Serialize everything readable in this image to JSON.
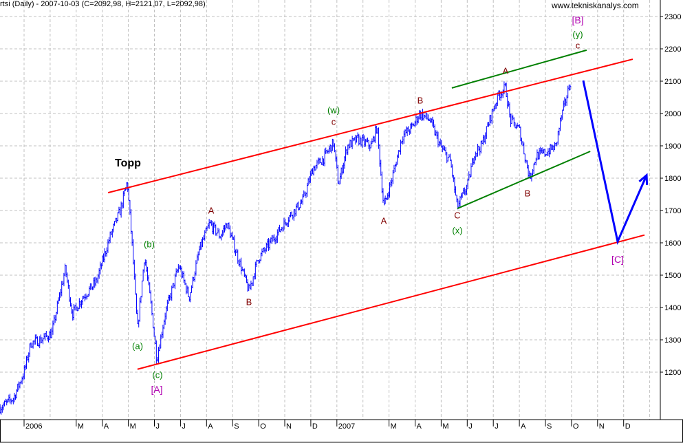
{
  "header": {
    "title": "rtsi (Daily) - 2007-10-03 (C=2092,98, H=2121,07, L=2092,98)",
    "watermark": "www.tekniskanalys.com"
  },
  "colors": {
    "price": "#0000ff",
    "channel": "#ff0000",
    "inner_channel": "#008000",
    "forecast": "#0000ff",
    "grid": "#c0c0c0"
  },
  "chart_data": {
    "type": "line",
    "title": "rtsi (Daily) - 2007-10-03 (C=2092,98, H=2121,07, L=2092,98)",
    "xlabel": "",
    "ylabel": "",
    "x_unit": "months since Jan 2006",
    "ylim": [
      1050,
      2340
    ],
    "yticks": [
      1200,
      1300,
      1400,
      1500,
      1600,
      1700,
      1800,
      1900,
      2000,
      2100,
      2200,
      2300
    ],
    "xticks": [
      {
        "m": 0,
        "label": "2006"
      },
      {
        "m": 2,
        "label": "M"
      },
      {
        "m": 3,
        "label": "A"
      },
      {
        "m": 4,
        "label": "M"
      },
      {
        "m": 5,
        "label": "J"
      },
      {
        "m": 6,
        "label": "J"
      },
      {
        "m": 7,
        "label": "A"
      },
      {
        "m": 8,
        "label": "S"
      },
      {
        "m": 9,
        "label": "O"
      },
      {
        "m": 10,
        "label": "N"
      },
      {
        "m": 11,
        "label": "D"
      },
      {
        "m": 12,
        "label": "2007"
      },
      {
        "m": 14,
        "label": "M"
      },
      {
        "m": 15,
        "label": "A"
      },
      {
        "m": 16,
        "label": "M"
      },
      {
        "m": 17,
        "label": "J"
      },
      {
        "m": 18,
        "label": "J"
      },
      {
        "m": 19,
        "label": "A"
      },
      {
        "m": 20,
        "label": "S"
      },
      {
        "m": 21,
        "label": "O"
      },
      {
        "m": 22,
        "label": "N"
      },
      {
        "m": 23,
        "label": "D"
      }
    ],
    "grid": true,
    "series": [
      {
        "name": "rtsi",
        "style": "ohlc",
        "points": [
          [
            -0.92,
            1090
          ],
          [
            -0.4,
            1120
          ],
          [
            0,
            1200
          ],
          [
            0.26,
            1290
          ],
          [
            0.66,
            1300
          ],
          [
            1.06,
            1320
          ],
          [
            1.58,
            1520
          ],
          [
            1.85,
            1380
          ],
          [
            2.24,
            1430
          ],
          [
            2.77,
            1480
          ],
          [
            3.3,
            1620
          ],
          [
            3.69,
            1700
          ],
          [
            3.96,
            1790
          ],
          [
            4.14,
            1600
          ],
          [
            4.35,
            1330
          ],
          [
            4.62,
            1560
          ],
          [
            4.88,
            1400
          ],
          [
            5.09,
            1240
          ],
          [
            5.41,
            1380
          ],
          [
            5.94,
            1530
          ],
          [
            6.33,
            1430
          ],
          [
            6.73,
            1580
          ],
          [
            7.12,
            1660
          ],
          [
            7.52,
            1620
          ],
          [
            7.78,
            1660
          ],
          [
            8.18,
            1560
          ],
          [
            8.63,
            1450
          ],
          [
            8.97,
            1550
          ],
          [
            9.63,
            1620
          ],
          [
            10.16,
            1680
          ],
          [
            10.69,
            1730
          ],
          [
            11.08,
            1830
          ],
          [
            11.48,
            1860
          ],
          [
            11.87,
            1910
          ],
          [
            12.06,
            1780
          ],
          [
            12.4,
            1900
          ],
          [
            12.8,
            1920
          ],
          [
            13.32,
            1900
          ],
          [
            13.54,
            1960
          ],
          [
            13.72,
            1780
          ],
          [
            13.8,
            1710
          ],
          [
            14.12,
            1800
          ],
          [
            14.51,
            1930
          ],
          [
            14.91,
            1960
          ],
          [
            15.17,
            2000
          ],
          [
            15.57,
            1980
          ],
          [
            15.96,
            1900
          ],
          [
            16.36,
            1850
          ],
          [
            16.62,
            1710
          ],
          [
            17.02,
            1780
          ],
          [
            17.28,
            1880
          ],
          [
            17.55,
            1900
          ],
          [
            17.94,
            2000
          ],
          [
            18.21,
            2060
          ],
          [
            18.47,
            2080
          ],
          [
            18.65,
            1980
          ],
          [
            19.0,
            1950
          ],
          [
            19.39,
            1800
          ],
          [
            19.66,
            1870
          ],
          [
            20.05,
            1880
          ],
          [
            20.4,
            1900
          ],
          [
            20.58,
            1980
          ],
          [
            20.84,
            2060
          ],
          [
            20.98,
            2110
          ]
        ]
      }
    ],
    "trendlines": [
      {
        "name": "upper-channel",
        "color": "#ff0000",
        "from": [
          3.22,
          1755
        ],
        "to": [
          23.35,
          2168
        ]
      },
      {
        "name": "lower-channel",
        "color": "#ff0000",
        "from": [
          4.35,
          1209
        ],
        "to": [
          23.8,
          1624
        ]
      },
      {
        "name": "inner-upper",
        "color": "#008000",
        "from": [
          16.41,
          2079
        ],
        "to": [
          21.58,
          2196
        ]
      },
      {
        "name": "inner-lower",
        "color": "#008000",
        "from": [
          16.62,
          1706
        ],
        "to": [
          21.72,
          1883
        ]
      },
      {
        "name": "forecast-path",
        "color": "#0000ff",
        "points": [
          [
            21.45,
            2102
          ],
          [
            22.77,
            1604
          ],
          [
            23.88,
            1809
          ]
        ]
      }
    ],
    "annotations": [
      "Topp",
      "(a)",
      "(b)",
      "(c)",
      "[A]",
      "A",
      "B",
      "c",
      "(w)",
      "A",
      "B",
      "C",
      "(x)",
      "A",
      "B",
      "c",
      "(y)",
      "[B]",
      "[C]"
    ]
  }
}
